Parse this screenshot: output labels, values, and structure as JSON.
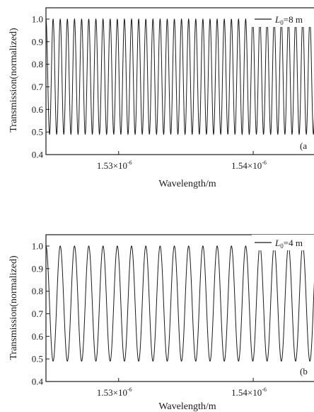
{
  "chart_data": [
    {
      "type": "line",
      "panel_label": "(a",
      "legend": {
        "placement": "top-right",
        "entries": [
          {
            "symbol": "L",
            "subscript": "0",
            "text": "=8 m"
          }
        ]
      },
      "xlabel": "Wavelength/m",
      "ylabel": "Transmission(normalized)",
      "ylim": [
        0.4,
        1.05
      ],
      "xlim": [
        1.5246e-06,
        1.5452e-06
      ],
      "yticks": [
        0.4,
        0.5,
        0.6,
        0.7,
        0.8,
        0.9,
        1.0
      ],
      "ytick_labels": [
        "0.4",
        "0.5",
        "0.6",
        "0.7",
        "0.8",
        "0.9",
        "1.0"
      ],
      "xticks": [
        {
          "value": 1.53e-06,
          "mantissa": "1.53×10",
          "exponent": "-6"
        },
        {
          "value": 1.54e-06,
          "mantissa": "1.54×10",
          "exponent": "-6"
        }
      ],
      "series": [
        {
          "curve": "periodic",
          "min": 0.49,
          "max": 1.0,
          "period": 5.3e-10,
          "x_range": [
            1.5246e-06,
            1.5452e-06
          ]
        }
      ]
    },
    {
      "type": "line",
      "panel_label": "(b",
      "legend": {
        "placement": "top-right",
        "entries": [
          {
            "symbol": "L",
            "subscript": "0",
            "text": "=4 m"
          }
        ]
      },
      "xlabel": "Wavelength/m",
      "ylabel": "Transmission(normalized)",
      "ylim": [
        0.4,
        1.05
      ],
      "xlim": [
        1.5246e-06,
        1.5452e-06
      ],
      "yticks": [
        0.4,
        0.5,
        0.6,
        0.7,
        0.8,
        0.9,
        1.0
      ],
      "ytick_labels": [
        "0.4",
        "0.5",
        "0.6",
        "0.7",
        "0.8",
        "0.9",
        "1.0"
      ],
      "xticks": [
        {
          "value": 1.53e-06,
          "mantissa": "1.53×10",
          "exponent": "-6"
        },
        {
          "value": 1.54e-06,
          "mantissa": "1.54×10",
          "exponent": "-6"
        }
      ],
      "series": [
        {
          "curve": "periodic",
          "min": 0.49,
          "max": 1.0,
          "period": 1.06e-09,
          "x_range": [
            1.5246e-06,
            1.5452e-06
          ]
        }
      ]
    }
  ]
}
